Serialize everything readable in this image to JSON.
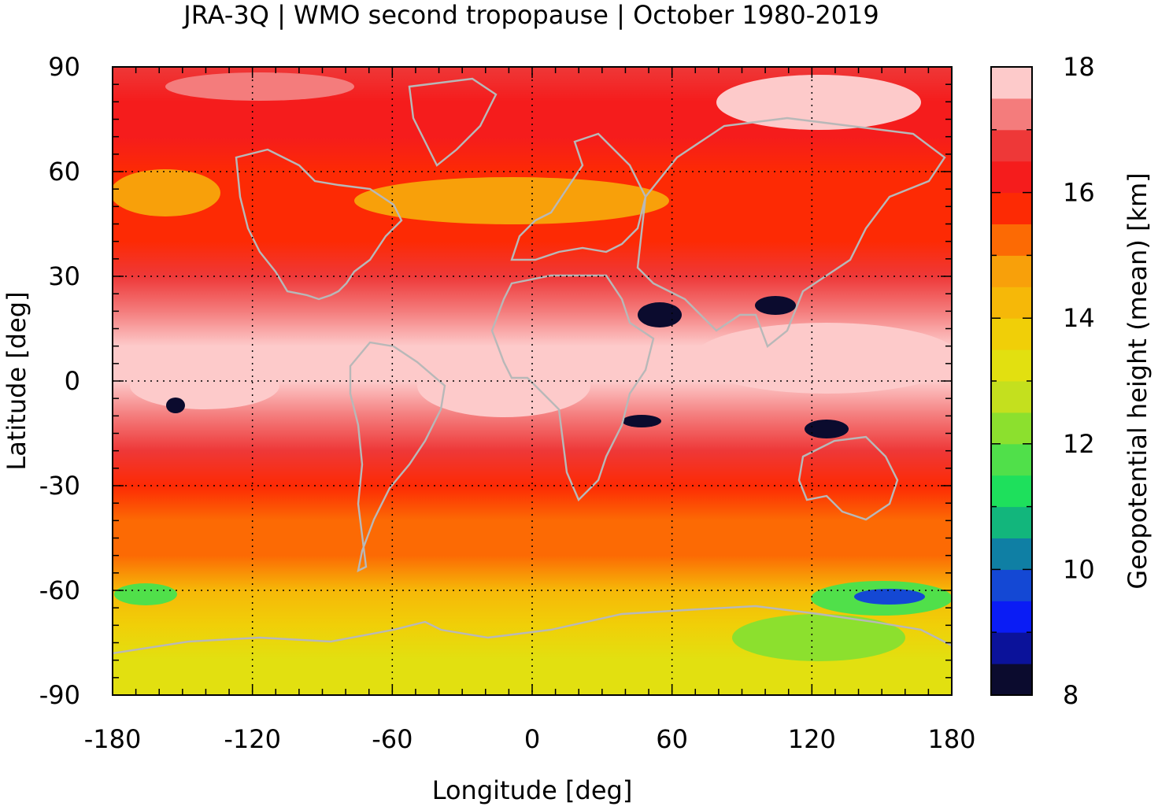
{
  "chart_data": {
    "type": "heatmap",
    "title": "JRA-3Q | WMO second tropopause | October 1980-2019",
    "xlabel": "Longitude [deg]",
    "ylabel": "Latitude [deg]",
    "xlim": [
      -180,
      180
    ],
    "ylim": [
      -90,
      90
    ],
    "xticks": [
      -180,
      -120,
      -60,
      0,
      60,
      120,
      180
    ],
    "yticks": [
      90,
      60,
      30,
      0,
      -30,
      -60,
      -90
    ],
    "grid": true,
    "colorbar": {
      "label": "Geopotential height (mean) [km]",
      "range": [
        8,
        18
      ],
      "ticks": [
        18,
        16,
        14,
        12,
        10,
        8
      ],
      "levels": [
        {
          "from": 8.0,
          "to": 8.5,
          "color": "#0b0b2e"
        },
        {
          "from": 8.5,
          "to": 9.0,
          "color": "#0b129a"
        },
        {
          "from": 9.0,
          "to": 9.5,
          "color": "#0a1cf5"
        },
        {
          "from": 9.5,
          "to": 10.0,
          "color": "#1448d4"
        },
        {
          "from": 10.0,
          "to": 10.5,
          "color": "#0f7fa4"
        },
        {
          "from": 10.5,
          "to": 11.0,
          "color": "#12b67c"
        },
        {
          "from": 11.0,
          "to": 11.5,
          "color": "#1ee05c"
        },
        {
          "from": 11.5,
          "to": 12.0,
          "color": "#50e04a"
        },
        {
          "from": 12.0,
          "to": 12.5,
          "color": "#8ce02e"
        },
        {
          "from": 12.5,
          "to": 13.0,
          "color": "#c4e01e"
        },
        {
          "from": 13.0,
          "to": 13.5,
          "color": "#e2e010"
        },
        {
          "from": 13.5,
          "to": 14.0,
          "color": "#f0cf08"
        },
        {
          "from": 14.0,
          "to": 14.5,
          "color": "#f6b808"
        },
        {
          "from": 14.5,
          "to": 15.0,
          "color": "#f8a00a"
        },
        {
          "from": 15.0,
          "to": 15.5,
          "color": "#fc6a04"
        },
        {
          "from": 15.5,
          "to": 16.0,
          "color": "#fd2a04"
        },
        {
          "from": 16.0,
          "to": 16.5,
          "color": "#f51c1c"
        },
        {
          "from": 16.5,
          "to": 17.0,
          "color": "#ee3838"
        },
        {
          "from": 17.0,
          "to": 17.5,
          "color": "#f47c7c"
        },
        {
          "from": 17.5,
          "to": 18.0,
          "color": "#fdcaca"
        }
      ]
    },
    "zonal_mean_profile": {
      "lat": [
        90,
        80,
        70,
        60,
        50,
        40,
        30,
        20,
        10,
        0,
        -10,
        -20,
        -30,
        -40,
        -50,
        -60,
        -70,
        -80,
        -90
      ],
      "value_km": [
        16.6,
        16.4,
        16.3,
        15.6,
        15.6,
        15.9,
        16.5,
        17.2,
        17.5,
        17.7,
        17.4,
        16.6,
        15.9,
        15.2,
        15.0,
        14.2,
        13.5,
        13.3,
        13.4
      ]
    },
    "coastline_color": "#b8b8b8"
  }
}
